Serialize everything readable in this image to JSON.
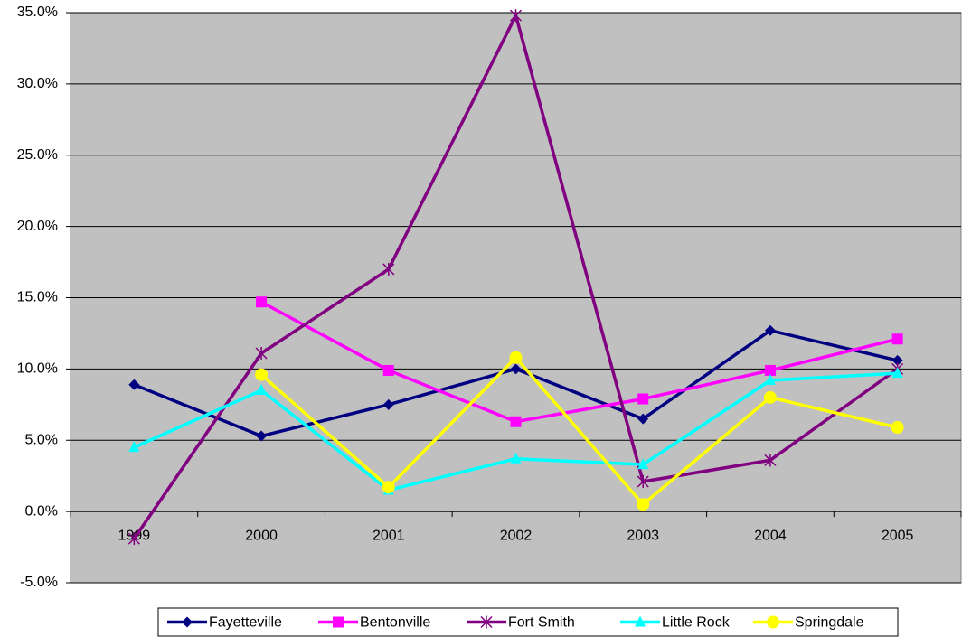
{
  "chart_data": {
    "type": "line",
    "categories": [
      "1999",
      "2000",
      "2001",
      "2002",
      "2003",
      "2004",
      "2005"
    ],
    "series": [
      {
        "name": "Fayetteville",
        "color": "#000080",
        "marker": "diamond",
        "values": [
          8.9,
          5.3,
          7.5,
          10.0,
          6.5,
          12.7,
          10.6
        ]
      },
      {
        "name": "Bentonville",
        "color": "#ff00ff",
        "marker": "square",
        "values": [
          null,
          14.7,
          9.9,
          6.3,
          7.9,
          9.9,
          12.1
        ]
      },
      {
        "name": "Fort Smith",
        "color": "#800080",
        "marker": "star",
        "values": [
          -1.9,
          11.1,
          17.0,
          34.8,
          2.1,
          3.6,
          10.0
        ]
      },
      {
        "name": "Little Rock",
        "color": "#00ffff",
        "marker": "triangle",
        "values": [
          4.5,
          8.5,
          1.5,
          3.7,
          3.3,
          9.2,
          9.7
        ]
      },
      {
        "name": "Springdale",
        "color": "#ffff00",
        "marker": "circle",
        "values": [
          null,
          9.6,
          1.7,
          10.8,
          0.5,
          8.0,
          5.9
        ]
      }
    ],
    "ylim": [
      -5,
      35
    ],
    "yticks": [
      {
        "value": -5,
        "label": "-5.0%"
      },
      {
        "value": 0,
        "label": "0.0%"
      },
      {
        "value": 5,
        "label": "5.0%"
      },
      {
        "value": 10,
        "label": "10.0%"
      },
      {
        "value": 15,
        "label": "15.0%"
      },
      {
        "value": 20,
        "label": "20.0%"
      },
      {
        "value": 25,
        "label": "25.0%"
      },
      {
        "value": 30,
        "label": "30.0%"
      },
      {
        "value": 35,
        "label": "35.0%"
      }
    ],
    "grid": true,
    "legend": "bottom"
  }
}
